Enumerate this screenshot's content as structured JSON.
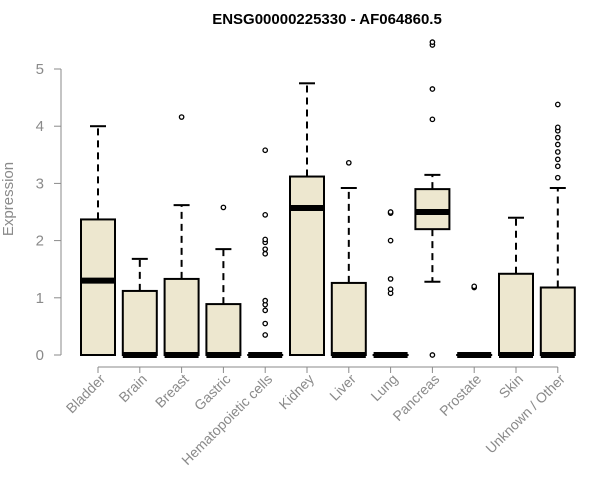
{
  "chart_data": {
    "type": "boxplot",
    "title": "ENSG00000225330 - AF064860.5",
    "xlabel": "",
    "ylabel": "Expression",
    "ylim": [
      0,
      5
    ],
    "yticks": [
      "0",
      "1",
      "2",
      "3",
      "4",
      "5"
    ],
    "grid": false,
    "legend": "none",
    "box_fill": "#ede7cf",
    "box_stroke": "#000000",
    "axis_color": "#8a8a8a",
    "categories": [
      "Bladder",
      "Brain",
      "Breast",
      "Gastric",
      "Hematopoietic cells",
      "Kidney",
      "Liver",
      "Lung",
      "Pancreas",
      "Prostate",
      "Skin",
      "Unknown / Other"
    ],
    "boxes": [
      {
        "category": "Bladder",
        "min": 0,
        "q1": 0,
        "median": 1.3,
        "q3": 2.37,
        "max": 4.0,
        "outliers": []
      },
      {
        "category": "Brain",
        "min": 0,
        "q1": 0,
        "median": 0,
        "q3": 1.12,
        "max": 1.68,
        "outliers": []
      },
      {
        "category": "Breast",
        "min": 0,
        "q1": 0,
        "median": 0,
        "q3": 1.33,
        "max": 2.62,
        "outliers": [
          4.16
        ]
      },
      {
        "category": "Gastric",
        "min": 0,
        "q1": 0,
        "median": 0,
        "q3": 0.89,
        "max": 1.85,
        "outliers": [
          2.58
        ]
      },
      {
        "category": "Hematopoietic cells",
        "min": 0,
        "q1": 0,
        "median": 0,
        "q3": 0,
        "max": 0,
        "outliers": [
          0.35,
          0.55,
          0.78,
          0.88,
          0.95,
          1.77,
          1.85,
          1.97,
          2.02,
          2.45,
          3.58
        ]
      },
      {
        "category": "Kidney",
        "min": 0,
        "q1": 0,
        "median": 2.57,
        "q3": 3.12,
        "max": 4.75,
        "outliers": []
      },
      {
        "category": "Liver",
        "min": 0,
        "q1": 0,
        "median": 0,
        "q3": 1.26,
        "max": 2.92,
        "outliers": [
          3.36
        ]
      },
      {
        "category": "Lung",
        "min": 0,
        "q1": 0,
        "median": 0,
        "q3": 0,
        "max": 0,
        "outliers": [
          1.08,
          1.15,
          1.33,
          2.0,
          2.48,
          2.5
        ]
      },
      {
        "category": "Pancreas",
        "min": 1.28,
        "q1": 2.2,
        "median": 2.5,
        "q3": 2.9,
        "max": 3.15,
        "outliers": [
          0.0,
          4.12,
          4.65,
          5.42,
          5.47
        ]
      },
      {
        "category": "Prostate",
        "min": 0,
        "q1": 0,
        "median": 0,
        "q3": 0,
        "max": 0,
        "outliers": [
          1.18,
          1.2
        ]
      },
      {
        "category": "Skin",
        "min": 0,
        "q1": 0,
        "median": 0,
        "q3": 1.42,
        "max": 2.4,
        "outliers": []
      },
      {
        "category": "Unknown / Other",
        "min": 0,
        "q1": 0,
        "median": 0,
        "q3": 1.18,
        "max": 2.92,
        "outliers": [
          3.1,
          3.3,
          3.42,
          3.55,
          3.68,
          3.8,
          3.92,
          3.98,
          4.38
        ]
      }
    ]
  }
}
